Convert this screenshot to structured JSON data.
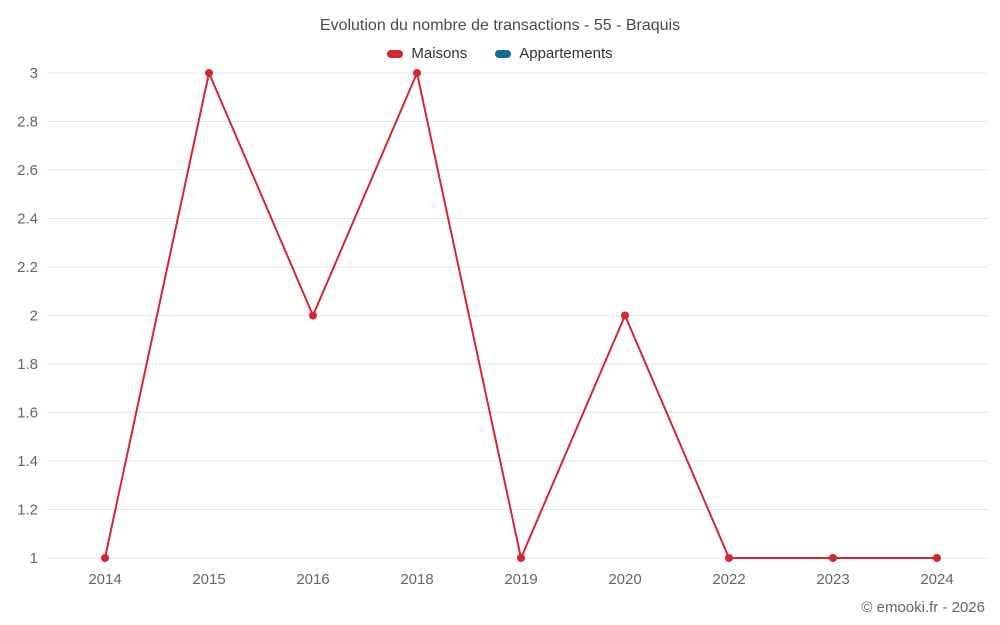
{
  "page": {
    "footer": "© emooki.fr - 2026"
  },
  "chart_data": {
    "type": "line",
    "title": "Evolution du nombre de transactions - 55 - Braquis",
    "categories": [
      "2014",
      "2015",
      "2016",
      "2018",
      "2019",
      "2020",
      "2022",
      "2023",
      "2024"
    ],
    "series": [
      {
        "name": "Maisons",
        "color": "#d22730",
        "values": [
          1,
          3,
          2,
          3,
          1,
          2,
          1,
          1,
          1
        ]
      },
      {
        "name": "Appartements",
        "color": "#0f6d94",
        "values": []
      }
    ],
    "xlabel": "",
    "ylabel": "",
    "ylim": [
      1,
      3
    ],
    "ytick_step": 0.2,
    "grid": "horizontal",
    "gridline_color": "#e6e6e6",
    "legend_position": "top"
  }
}
